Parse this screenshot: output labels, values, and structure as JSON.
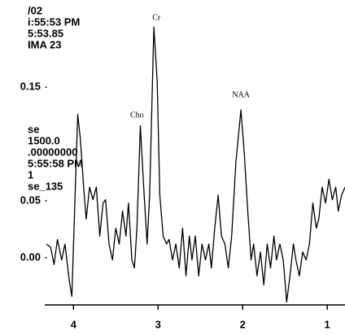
{
  "chart_data": {
    "type": "line",
    "header_lines": [
      "/02",
      "i:55:53 PM",
      "5:53.85",
      "IMA 23",
      "se",
      "1500.0",
      ".00000000",
      "5:55:58 PM",
      "1",
      "se_135"
    ],
    "annotations": [
      {
        "text": "Cr",
        "x": 3.02,
        "y": 0.211
      },
      {
        "text": "Cho",
        "x": 3.25,
        "y": 0.125
      },
      {
        "text": "NAA",
        "x": 2.02,
        "y": 0.143
      }
    ],
    "x": [
      4.32,
      4.27,
      4.23,
      4.19,
      4.14,
      4.1,
      4.05,
      4.02,
      3.95,
      3.92,
      3.88,
      3.85,
      3.81,
      3.77,
      3.73,
      3.69,
      3.65,
      3.62,
      3.58,
      3.54,
      3.5,
      3.46,
      3.42,
      3.38,
      3.35,
      3.31,
      3.28,
      3.25,
      3.21,
      3.17,
      3.13,
      3.1,
      3.05,
      3.01,
      2.98,
      2.94,
      2.9,
      2.87,
      2.83,
      2.79,
      2.75,
      2.71,
      2.67,
      2.63,
      2.6,
      2.56,
      2.52,
      2.48,
      2.44,
      2.4,
      2.37,
      2.33,
      2.29,
      2.25,
      2.21,
      2.17,
      2.13,
      2.08,
      2.02,
      1.98,
      1.94,
      1.9,
      1.87,
      1.83,
      1.79,
      1.75,
      1.71,
      1.67,
      1.63,
      1.6,
      1.56,
      1.52,
      1.48,
      1.44,
      1.4,
      1.37,
      1.33,
      1.29,
      1.25,
      1.21,
      1.17,
      1.13,
      1.1,
      1.06,
      1.02,
      0.98,
      0.94,
      0.9,
      0.87,
      0.83,
      0.79
    ],
    "values": [
      0.012,
      0.009,
      -0.006,
      0.016,
      -0.002,
      0.012,
      -0.02,
      -0.034,
      0.126,
      0.105,
      0.062,
      0.034,
      0.062,
      0.051,
      0.062,
      0.019,
      0.048,
      0.051,
      0.012,
      -0.002,
      0.026,
      0.012,
      0.041,
      0.019,
      0.048,
      -0.002,
      -0.009,
      0.026,
      0.116,
      0.062,
      0.012,
      0.055,
      0.203,
      0.155,
      0.055,
      0.019,
      0.012,
      0.016,
      -0.002,
      0.012,
      -0.009,
      0.026,
      -0.016,
      0.019,
      -0.002,
      0.019,
      -0.016,
      0.012,
      -0.002,
      0.012,
      -0.009,
      0.026,
      0.055,
      0.019,
      0.012,
      -0.009,
      0.019,
      0.084,
      0.13,
      0.091,
      0.041,
      -0.002,
      0.012,
      -0.016,
      0.005,
      -0.024,
      0.012,
      -0.009,
      0.019,
      -0.002,
      0.012,
      -0.002,
      -0.039,
      -0.016,
      0.012,
      -0.002,
      -0.016,
      0.005,
      -0.002,
      0.012,
      0.048,
      0.026,
      0.034,
      0.062,
      0.048,
      0.069,
      0.051,
      0.062,
      0.041,
      0.055,
      0.062
    ],
    "color": "#000000",
    "xlim": [
      4.34,
      0.79
    ],
    "xticks": [
      4,
      3,
      2,
      1
    ],
    "ylim": [
      -0.043,
      0.226
    ],
    "yticks": [
      {
        "value": 0.15,
        "label": "0.15"
      },
      {
        "value": 0.05,
        "label": "0.05"
      },
      {
        "value": 0,
        "label": "0.00"
      }
    ]
  }
}
